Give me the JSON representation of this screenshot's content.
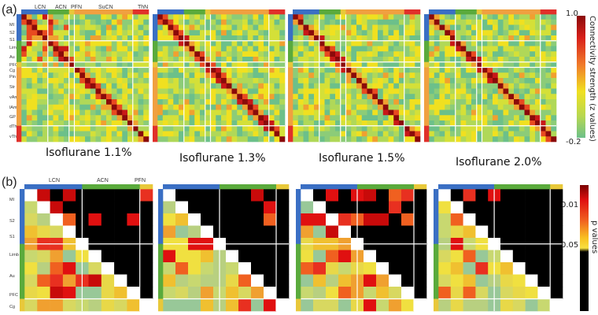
{
  "panels": [
    {
      "label": "(a)"
    },
    {
      "label": "(b)"
    }
  ],
  "chart_data": [
    {
      "type": "heatmap",
      "panel": "(a)",
      "group_labels": [
        "LCN",
        "ACN",
        "PFN",
        "SuCN",
        "ThN"
      ],
      "region_labels": [
        "MI",
        "S2",
        "S1",
        "Limb",
        "Au",
        "PFC",
        "Cg",
        "Pin",
        "Str",
        "vAmg",
        "lAmg",
        "GP",
        "dTh",
        "vTh"
      ],
      "group_colors": {
        "LCN": "#3a6fc4",
        "ACN": "#5aaa3c",
        "PFN": "#e8c83a",
        "SuCN": "#f0a040",
        "ThN": "#e0302a"
      },
      "titles": [
        "Isoflurane 1.1%",
        "Isoflurane 1.3%",
        "Isoflurane 1.5%",
        "Isoflurane 2.0%"
      ],
      "colorbar": {
        "label": "Connectivity strength (z values)",
        "max_label": "1.0",
        "min_label": "-0.2",
        "range": [
          -0.2,
          1.0
        ]
      }
    },
    {
      "type": "heatmap",
      "panel": "(b)",
      "group_labels": [
        "LCN",
        "ACN",
        "PFN"
      ],
      "region_labels": [
        "MI",
        "S2",
        "S1",
        "Limb",
        "Au",
        "PFC",
        "Cg"
      ],
      "colorbar": {
        "label": "p values",
        "tick_labels": [
          "0.01",
          "0.05"
        ]
      }
    }
  ]
}
